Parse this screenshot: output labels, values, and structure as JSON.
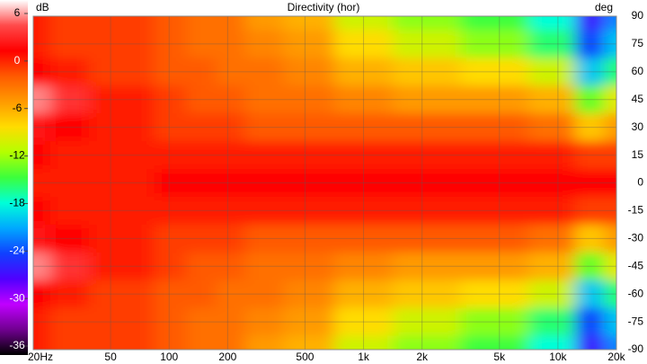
{
  "chart_data": {
    "type": "heatmap",
    "title": "Directivity (hor)",
    "colorbar_label": "dB",
    "y_axis_label": "deg",
    "x": [
      20,
      30,
      50,
      70,
      100,
      150,
      200,
      300,
      500,
      1000,
      2000,
      5000,
      10000,
      15000,
      20000
    ],
    "y": [
      90,
      75,
      60,
      45,
      30,
      15,
      0,
      -15,
      -30,
      -45,
      -60,
      -75,
      -90
    ],
    "values": [
      [
        -1,
        -2,
        -2,
        -2,
        -3,
        -4,
        -4,
        -6,
        -7,
        -11,
        -13,
        -15,
        -18,
        -26,
        -22
      ],
      [
        -1,
        -2,
        -2,
        -2,
        -3,
        -4,
        -4,
        -5,
        -6,
        -9,
        -11,
        -13,
        -16,
        -24,
        -20
      ],
      [
        0,
        -1,
        -2,
        -2,
        -3,
        -3,
        -4,
        -4,
        -5,
        -7,
        -8,
        -9,
        -11,
        -20,
        -16
      ],
      [
        4,
        2,
        -1,
        -1,
        -2,
        -3,
        -3,
        -4,
        -4,
        -5,
        -6,
        -6,
        -7,
        -14,
        -10
      ],
      [
        1,
        0,
        -1,
        -1,
        -2,
        -2,
        -2,
        -3,
        -3,
        -3,
        -3,
        -3,
        -4,
        -8,
        -6
      ],
      [
        0,
        -1,
        -1,
        -1,
        -1,
        -1,
        -1,
        -1,
        -1,
        -1,
        -1,
        -1,
        -1,
        -2,
        -2
      ],
      [
        -1,
        -1,
        -1,
        -1,
        0,
        0,
        0,
        0,
        0,
        0,
        0,
        0,
        0,
        0,
        0
      ],
      [
        0,
        -1,
        -1,
        -1,
        -1,
        -1,
        -1,
        -1,
        -1,
        -1,
        -1,
        -1,
        -1,
        -2,
        -2
      ],
      [
        1,
        0,
        -1,
        -1,
        -2,
        -2,
        -2,
        -3,
        -3,
        -3,
        -3,
        -3,
        -4,
        -8,
        -6
      ],
      [
        4,
        2,
        -1,
        -1,
        -2,
        -3,
        -3,
        -4,
        -4,
        -5,
        -6,
        -6,
        -7,
        -14,
        -10
      ],
      [
        0,
        -1,
        -2,
        -2,
        -3,
        -3,
        -4,
        -4,
        -5,
        -7,
        -8,
        -9,
        -11,
        -20,
        -16
      ],
      [
        -1,
        -2,
        -2,
        -2,
        -3,
        -4,
        -4,
        -5,
        -6,
        -9,
        -11,
        -13,
        -16,
        -24,
        -20
      ],
      [
        -1,
        -2,
        -2,
        -2,
        -3,
        -4,
        -4,
        -6,
        -7,
        -11,
        -13,
        -15,
        -18,
        -26,
        -22
      ]
    ],
    "xlim": [
      20,
      20000
    ],
    "xscale": "log",
    "xticks": [
      {
        "value": 20,
        "label": "20Hz"
      },
      50,
      100,
      200,
      500,
      {
        "value": 1000,
        "label": "1k"
      },
      {
        "value": 2000,
        "label": "2k"
      },
      {
        "value": 5000,
        "label": "5k"
      },
      {
        "value": 10000,
        "label": "10k"
      },
      {
        "value": 20000,
        "label": "20k"
      }
    ],
    "ylim": [
      -90,
      90
    ],
    "yticks": [
      90,
      75,
      60,
      45,
      30,
      15,
      0,
      -15,
      -30,
      -45,
      -60,
      -75,
      -90
    ],
    "clim": [
      -36,
      6
    ],
    "cticks": [
      6,
      0,
      -6,
      -12,
      -18,
      -24,
      -30,
      -36
    ],
    "colormap": [
      "#ffffff",
      "#ff4a4a",
      "#ff0000",
      "#ff5a00",
      "#ff9a00",
      "#ffdc00",
      "#b4ff00",
      "#3cff3c",
      "#00ffd8",
      "#00a8ff",
      "#1040ff",
      "#5000ff",
      "#c000ff",
      "#700090",
      "#000000"
    ],
    "grid": true
  }
}
